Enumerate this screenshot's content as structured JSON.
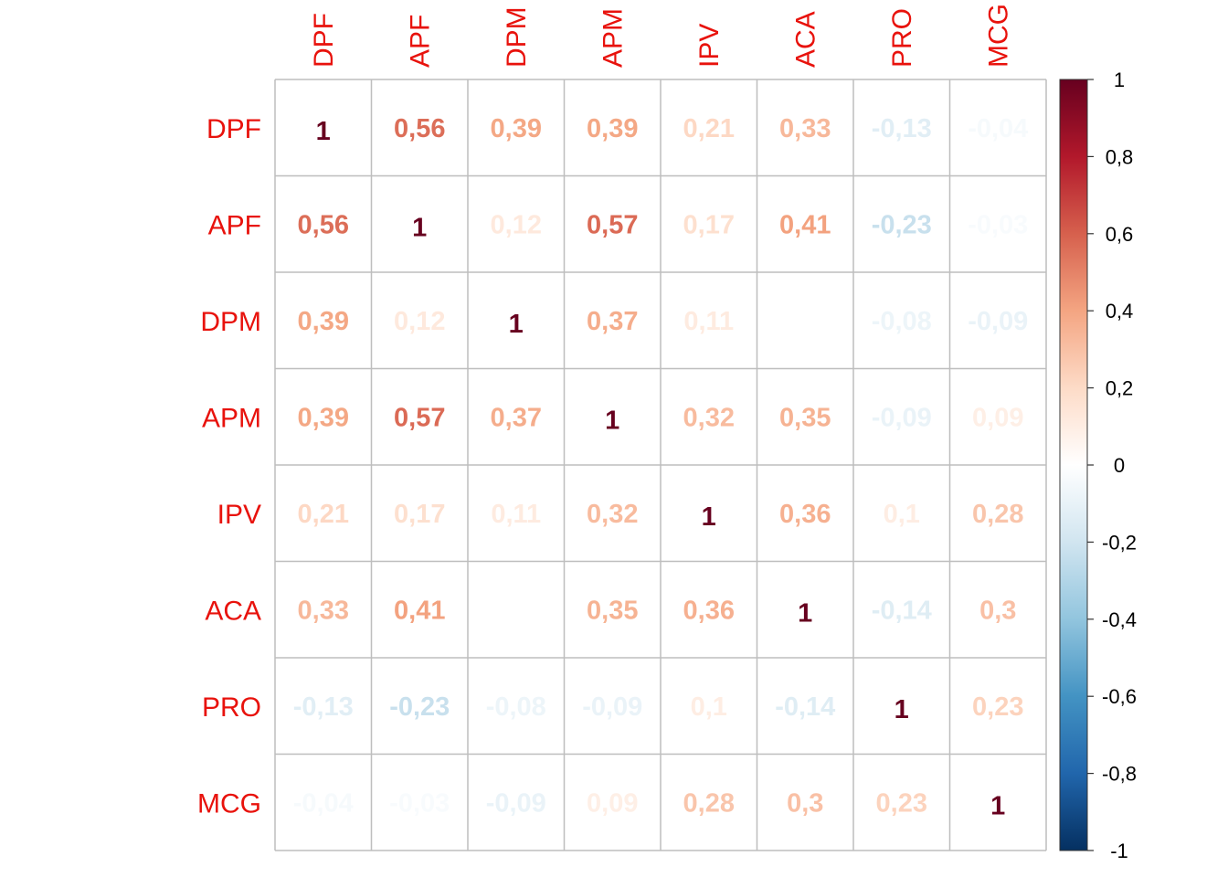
{
  "chart_data": {
    "type": "heatmap",
    "title": "",
    "variables": [
      "DPF",
      "APF",
      "DPM",
      "APM",
      "IPV",
      "ACA",
      "PRO",
      "MCG"
    ],
    "matrix": [
      [
        1,
        0.56,
        0.39,
        0.39,
        0.21,
        0.33,
        -0.13,
        -0.04
      ],
      [
        0.56,
        1,
        0.12,
        0.57,
        0.17,
        0.41,
        -0.23,
        -0.03
      ],
      [
        0.39,
        0.12,
        1,
        0.37,
        0.11,
        0,
        -0.08,
        -0.09
      ],
      [
        0.39,
        0.57,
        0.37,
        1,
        0.32,
        0.35,
        -0.09,
        0.09
      ],
      [
        0.21,
        0.17,
        0.11,
        0.32,
        1,
        0.36,
        0.1,
        0.28
      ],
      [
        0.33,
        0.41,
        0,
        0.35,
        0.36,
        1,
        -0.14,
        0.3
      ],
      [
        -0.13,
        -0.23,
        -0.08,
        -0.09,
        0.1,
        -0.14,
        1,
        0.23
      ],
      [
        -0.04,
        -0.03,
        -0.09,
        0.09,
        0.28,
        0.3,
        0.23,
        1
      ]
    ],
    "value_range": [
      -1,
      1
    ],
    "decimal_separator": ",",
    "colorbar": {
      "ticks": [
        1,
        0.8,
        0.6,
        0.4,
        0.2,
        0,
        -0.2,
        -0.4,
        -0.6,
        -0.8,
        -1
      ],
      "tick_labels": [
        "1",
        "0,8",
        "0,6",
        "0,4",
        "0,2",
        "0",
        "-0,2",
        "-0,4",
        "-0,6",
        "-0,8",
        "-1"
      ],
      "colors": [
        "#67001F",
        "#B2182B",
        "#D6604D",
        "#F4A582",
        "#FDDBC7",
        "#FFFFFF",
        "#D1E5F0",
        "#92C5DE",
        "#4393C3",
        "#2166AC",
        "#053061"
      ]
    },
    "label_color": "#E8120C",
    "grid_color": "#BEBEBE",
    "grid": true,
    "legend_position": "right"
  }
}
